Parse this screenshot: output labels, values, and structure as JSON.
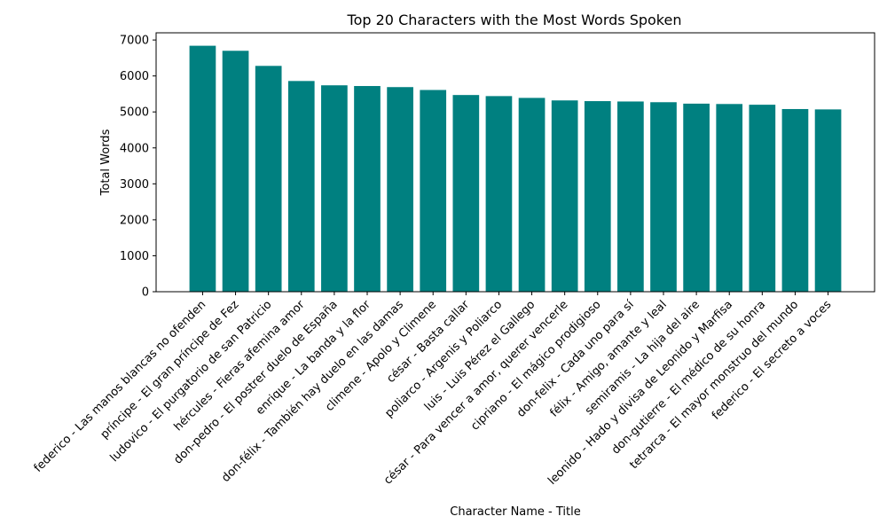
{
  "chart_data": {
    "type": "bar",
    "title": "Top 20 Characters with the Most Words Spoken",
    "xlabel": "Character Name - Title",
    "ylabel": "Total Words",
    "ylim": [
      0,
      7200
    ],
    "yticks": [
      0,
      1000,
      2000,
      3000,
      4000,
      5000,
      6000,
      7000
    ],
    "bar_color": "#008080",
    "grid": false,
    "categories": [
      "federico - Las manos blancas no ofenden",
      "príncipe - El gran príncipe de Fez",
      "ludovico - El purgatorio de san Patricio",
      "hércules - Fieras afemina amor",
      "don-pedro - El postrer duelo de España",
      "enrique - La banda y la flor",
      "don-félix - También hay duelo en las damas",
      "climene - Apolo y Climene",
      "césar - Basta callar",
      "poliarco - Argenis y Poliarco",
      "luis - Luis Pérez el Gallego",
      "césar - Para vencer a amor, querer vencerle",
      "cipriano - El mágico prodigioso",
      "don-felix - Cada uno para sí",
      "félix - Amigo, amante y leal",
      "semiramis - La hija del aire",
      "leonido - Hado y divisa de Leonido y Marfisa",
      "don-gutierre - El médico de su honra",
      "tetrarca - El mayor monstruo del mundo",
      "federico - El secreto a voces"
    ],
    "values": [
      6840,
      6700,
      6280,
      5860,
      5740,
      5720,
      5690,
      5610,
      5470,
      5440,
      5390,
      5320,
      5300,
      5290,
      5270,
      5230,
      5220,
      5200,
      5080,
      5070
    ]
  }
}
